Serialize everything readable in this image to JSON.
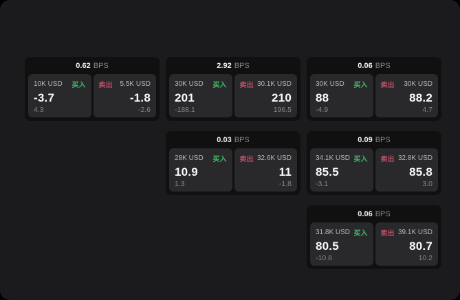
{
  "theme": {
    "outer_background": "#000000",
    "surface_background": "#1b1b1d",
    "card_background": "#101011",
    "panel_background": "#29292c",
    "buy_color": "#3fbf63",
    "sell_color": "#c24a63",
    "primary_text": "#fafafa",
    "muted_text": "#87878a"
  },
  "cards": [
    {
      "spread": "0.62",
      "unit": "BPS",
      "buy": {
        "amount": "10K USD",
        "side": "买入",
        "price": "-3.7",
        "delta": "4.3"
      },
      "sell": {
        "side": "卖出",
        "amount": "5.5K USD",
        "price": "-1.8",
        "delta": "-2.6"
      }
    },
    {
      "spread": "2.92",
      "unit": "BPS",
      "buy": {
        "amount": "30K USD",
        "side": "买入",
        "price": "201",
        "delta": "-188.1"
      },
      "sell": {
        "side": "卖出",
        "amount": "30.1K USD",
        "price": "210",
        "delta": "196.5"
      }
    },
    {
      "spread": "0.06",
      "unit": "BPS",
      "buy": {
        "amount": "30K USD",
        "side": "买入",
        "price": "88",
        "delta": "-4.9"
      },
      "sell": {
        "side": "卖出",
        "amount": "30K USD",
        "price": "88.2",
        "delta": "4.7"
      }
    },
    {
      "spread": "0.03",
      "unit": "BPS",
      "buy": {
        "amount": "28K USD",
        "side": "买入",
        "price": "10.9",
        "delta": "1.3"
      },
      "sell": {
        "side": "卖出",
        "amount": "32.6K USD",
        "price": "11",
        "delta": "-1.8"
      }
    },
    {
      "spread": "0.09",
      "unit": "BPS",
      "buy": {
        "amount": "34.1K USD",
        "side": "买入",
        "price": "85.5",
        "delta": "-3.1"
      },
      "sell": {
        "side": "卖出",
        "amount": "32.8K USD",
        "price": "85.8",
        "delta": "3.0"
      }
    },
    {
      "spread": "0.06",
      "unit": "BPS",
      "buy": {
        "amount": "31.8K USD",
        "side": "买入",
        "price": "80.5",
        "delta": "-10.8"
      },
      "sell": {
        "side": "卖出",
        "amount": "39.1K USD",
        "price": "80.7",
        "delta": "10.2"
      }
    }
  ]
}
